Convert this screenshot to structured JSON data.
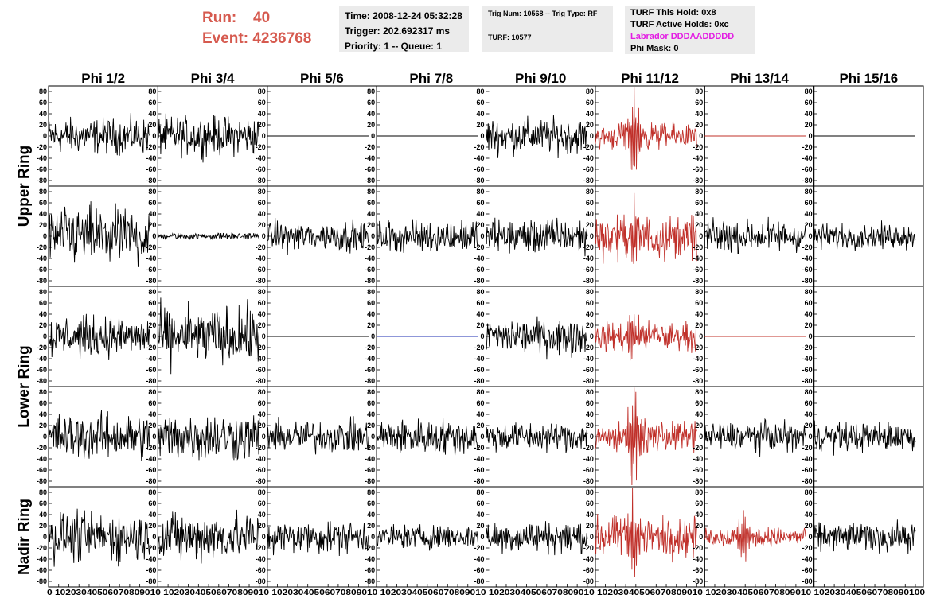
{
  "header": {
    "run_label": "Run:",
    "run_value": "40",
    "event_label": "Event:",
    "event_value": "4236768",
    "time": "Time: 2008-12-24 05:32:28",
    "trigger": "Trigger: 202.692317 ms",
    "priority": "Priority: 1 -- Queue: 1",
    "trig_num": "Trig Num: 10568 -- Trig Type: RF",
    "turf": "TURF: 10577",
    "turf_hold": "TURF This Hold: 0x8",
    "turf_active": "TURF Active Holds: 0xc",
    "labrador": "Labrador DDDAADDDDD",
    "phi_mask": "Phi Mask: 0"
  },
  "colors": {
    "header_red": "#d65a4f",
    "labrador": "#e31be3",
    "trace": "#000000",
    "trace_red": "#c0302a",
    "trace_blue": "#1f2fb3",
    "box_bg": "#ebebeb"
  },
  "chart_data": {
    "type": "line",
    "columns": [
      "Phi 1/2",
      "Phi 3/4",
      "Phi 5/6",
      "Phi 7/8",
      "Phi 9/10",
      "Phi 11/12",
      "Phi 13/14",
      "Phi 15/16"
    ],
    "ring_labels": [
      "Upper Ring",
      "Lower Ring",
      "Nadir Ring"
    ],
    "ylim": [
      -90,
      90
    ],
    "y_ticks": [
      -80,
      -60,
      -40,
      -20,
      0,
      20,
      40,
      60,
      80
    ],
    "xlim": [
      0,
      100
    ],
    "x_ticks": [
      "0",
      "10",
      "20",
      "30",
      "40",
      "50",
      "60",
      "70",
      "80",
      "90",
      "100"
    ],
    "x_tick_row": "0 10203040506070809010 10203040506070809010 10203040506070809010 10203040506070809010 10203040506070809010 10203040506070809010 10203040506070809010 102030405060708090100",
    "rows": [
      {
        "ring": "Upper Ring",
        "traces": [
          {
            "type": "noise",
            "amp": 22,
            "color": "black"
          },
          {
            "type": "noise",
            "amp": 24,
            "color": "black"
          },
          {
            "type": "flat",
            "color": "black"
          },
          {
            "type": "flat",
            "color": "black"
          },
          {
            "type": "noise",
            "amp": 22,
            "color": "black"
          },
          {
            "type": "pulse",
            "amp": 16,
            "peak": 75,
            "center": 38,
            "color": "red"
          },
          {
            "type": "flat",
            "color": "red"
          },
          {
            "type": "flat",
            "color": "black"
          }
        ]
      },
      {
        "ring": "Upper Ring",
        "traces": [
          {
            "type": "noise",
            "amp": 35,
            "color": "black"
          },
          {
            "type": "noise",
            "amp": 4,
            "color": "black"
          },
          {
            "type": "noise",
            "amp": 18,
            "color": "black"
          },
          {
            "type": "noise",
            "amp": 20,
            "color": "black"
          },
          {
            "type": "noise",
            "amp": 22,
            "color": "black"
          },
          {
            "type": "pulse",
            "amp": 28,
            "peak": 65,
            "center": 38,
            "color": "red"
          },
          {
            "type": "noise",
            "amp": 20,
            "color": "black"
          },
          {
            "type": "noise",
            "amp": 15,
            "color": "black"
          }
        ]
      },
      {
        "ring": "Lower Ring",
        "traces": [
          {
            "type": "noise",
            "amp": 25,
            "color": "black"
          },
          {
            "type": "noise",
            "amp": 35,
            "color": "black"
          },
          {
            "type": "flat",
            "color": "black"
          },
          {
            "type": "flat",
            "color": "blue"
          },
          {
            "type": "noise",
            "amp": 22,
            "color": "black"
          },
          {
            "type": "pulse",
            "amp": 18,
            "peak": 45,
            "center": 38,
            "color": "red"
          },
          {
            "type": "flat",
            "color": "red"
          },
          {
            "type": "flat",
            "color": "black"
          }
        ]
      },
      {
        "ring": "Lower Ring",
        "traces": [
          {
            "type": "noise",
            "amp": 28,
            "color": "black"
          },
          {
            "type": "noise",
            "amp": 30,
            "color": "black"
          },
          {
            "type": "noise",
            "amp": 20,
            "color": "black"
          },
          {
            "type": "noise",
            "amp": 22,
            "color": "black"
          },
          {
            "type": "noise",
            "amp": 18,
            "color": "black"
          },
          {
            "type": "pulse",
            "amp": 18,
            "peak": 80,
            "center": 38,
            "color": "red"
          },
          {
            "type": "noise",
            "amp": 18,
            "color": "black"
          },
          {
            "type": "noise",
            "amp": 18,
            "color": "black"
          }
        ]
      },
      {
        "ring": "Nadir Ring",
        "traces": [
          {
            "type": "noise",
            "amp": 30,
            "color": "black"
          },
          {
            "type": "noise",
            "amp": 30,
            "color": "black"
          },
          {
            "type": "noise",
            "amp": 20,
            "color": "black"
          },
          {
            "type": "noise",
            "amp": 15,
            "color": "black"
          },
          {
            "type": "noise",
            "amp": 20,
            "color": "black"
          },
          {
            "type": "pulse",
            "amp": 25,
            "peak": 88,
            "center": 38,
            "color": "red"
          },
          {
            "type": "pulse",
            "amp": 12,
            "peak": 45,
            "center": 38,
            "color": "red"
          },
          {
            "type": "noise",
            "amp": 18,
            "color": "black"
          }
        ]
      }
    ]
  }
}
